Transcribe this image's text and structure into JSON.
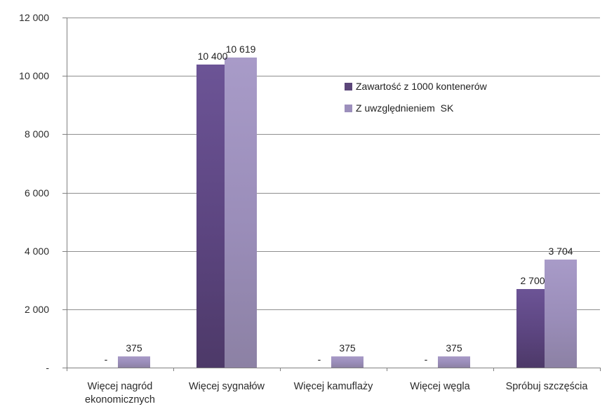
{
  "chart_data": {
    "type": "bar",
    "title": "",
    "categories": [
      "Więcej nagród ekonomicznych",
      "Więcej sygnałów",
      "Więcej kamuflaży",
      "Więcej węgla",
      "Spróbuj szczęścia"
    ],
    "series": [
      {
        "name": "Zawartość z 1000 kontenerów",
        "values": [
          0,
          10400,
          0,
          0,
          2700
        ],
        "labels": [
          "-",
          "10 400",
          "-",
          "-",
          "2 700"
        ],
        "color": "#5b4679",
        "gradient_top": "#6c5496",
        "gradient_bottom": "#4d3968"
      },
      {
        "name": "Z uwzględnieniem  SK",
        "values": [
          375,
          10619,
          375,
          375,
          3704
        ],
        "labels": [
          "375",
          "10 619",
          "375",
          "375",
          "3 704"
        ],
        "color": "#9c8fbc",
        "gradient_top": "#a89bc8",
        "gradient_bottom": "#8c81a4"
      }
    ],
    "y_axis": {
      "min": 0,
      "max": 12000,
      "tick_step": 2000,
      "tick_labels": [
        "-",
        "2 000",
        "4 000",
        "6 000",
        "8 000",
        "10 000",
        "12 000"
      ]
    },
    "grid": true,
    "legend_position": "inside-top-right",
    "xlabel": "",
    "ylabel": ""
  },
  "colors": {
    "bar_dark": "#5b4679",
    "bar_light": "#9c8fbc",
    "axis": "#808080",
    "gridline": "#8e8e8e",
    "text": "#2b2b2b",
    "background": "#ffffff"
  }
}
